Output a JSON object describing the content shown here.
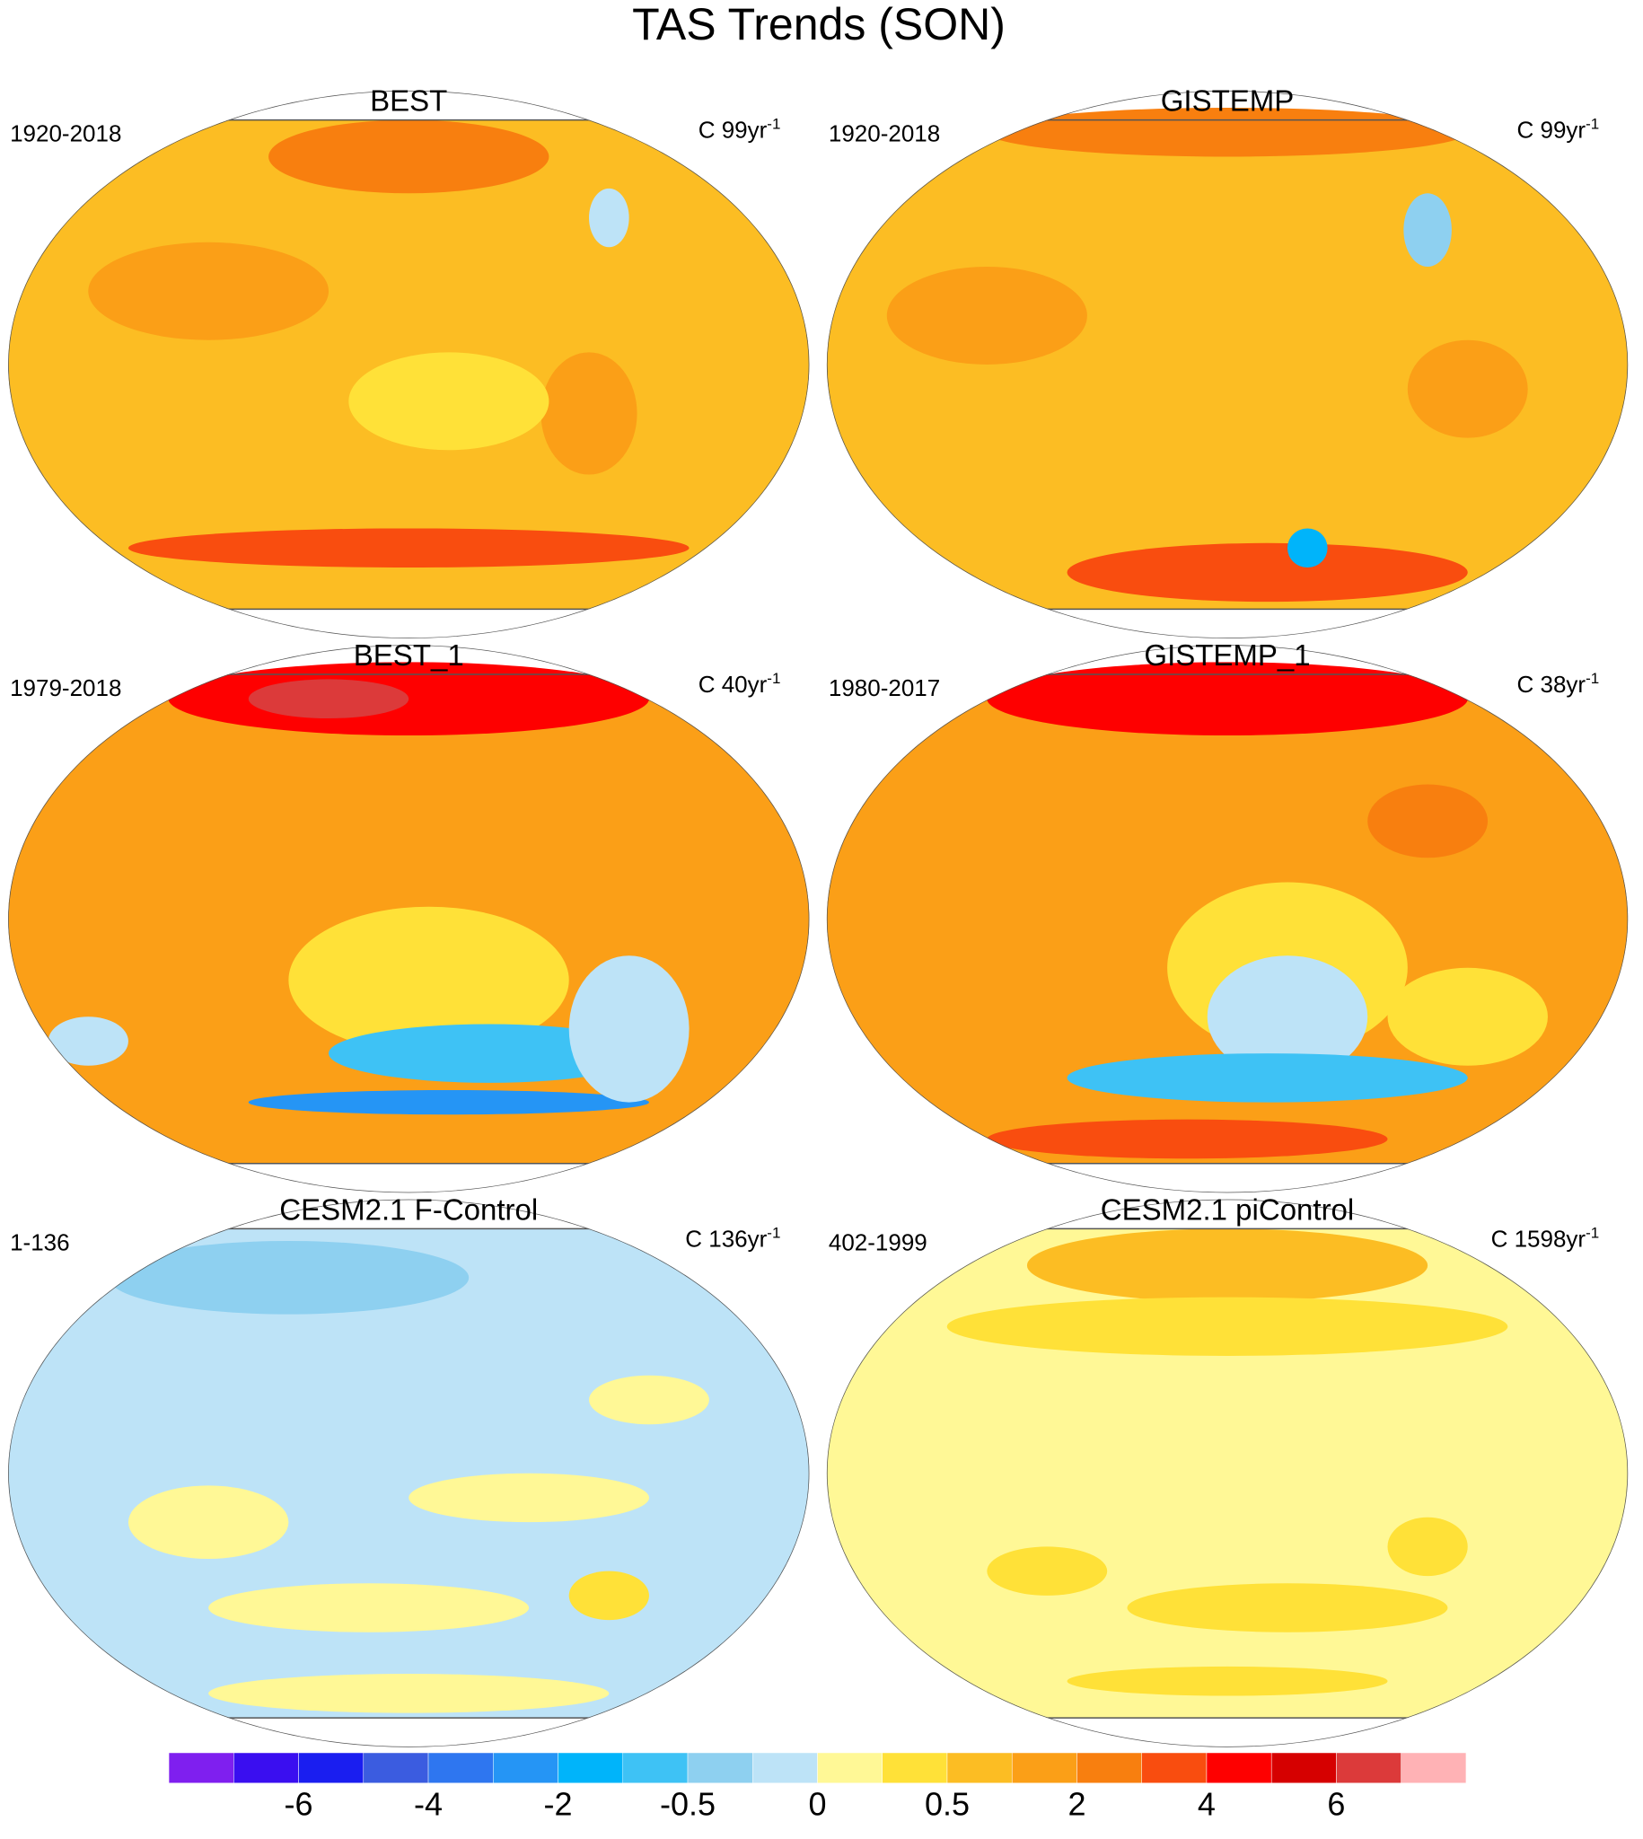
{
  "title": "TAS Trends (SON)",
  "panels": [
    {
      "title": "BEST",
      "period": "1920-2018",
      "units": "C 99yr",
      "units_exponent": "-1"
    },
    {
      "title": "GISTEMP",
      "period": "1920-2018",
      "units": "C 99yr",
      "units_exponent": "-1"
    },
    {
      "title": "BEST_1",
      "period": "1979-2018",
      "units": "C 40yr",
      "units_exponent": "-1"
    },
    {
      "title": "GISTEMP_1",
      "period": "1980-2017",
      "units": "C 38yr",
      "units_exponent": "-1"
    },
    {
      "title": "CESM2.1 F-Control",
      "period": "1-136",
      "units": "C 136yr",
      "units_exponent": "-1"
    },
    {
      "title": "CESM2.1 piControl",
      "period": "402-1999",
      "units": "C 1598yr",
      "units_exponent": "-1"
    }
  ],
  "colorbar": {
    "colors": [
      "#7f1fef",
      "#3a0ef0",
      "#1a1ef0",
      "#3b5ce0",
      "#2e76f0",
      "#2595f5",
      "#00b4fa",
      "#3ec2f5",
      "#8ed0f0",
      "#bde3f7",
      "#fff896",
      "#ffe138",
      "#fcbd23",
      "#fb9f17",
      "#f87f0f",
      "#f94d0f",
      "#fe0000",
      "#d60000",
      "#dc3a3a",
      "#ffb2b5"
    ],
    "labels": [
      -6,
      -4,
      -2,
      -0.5,
      0,
      0.5,
      2,
      4,
      6
    ]
  }
}
